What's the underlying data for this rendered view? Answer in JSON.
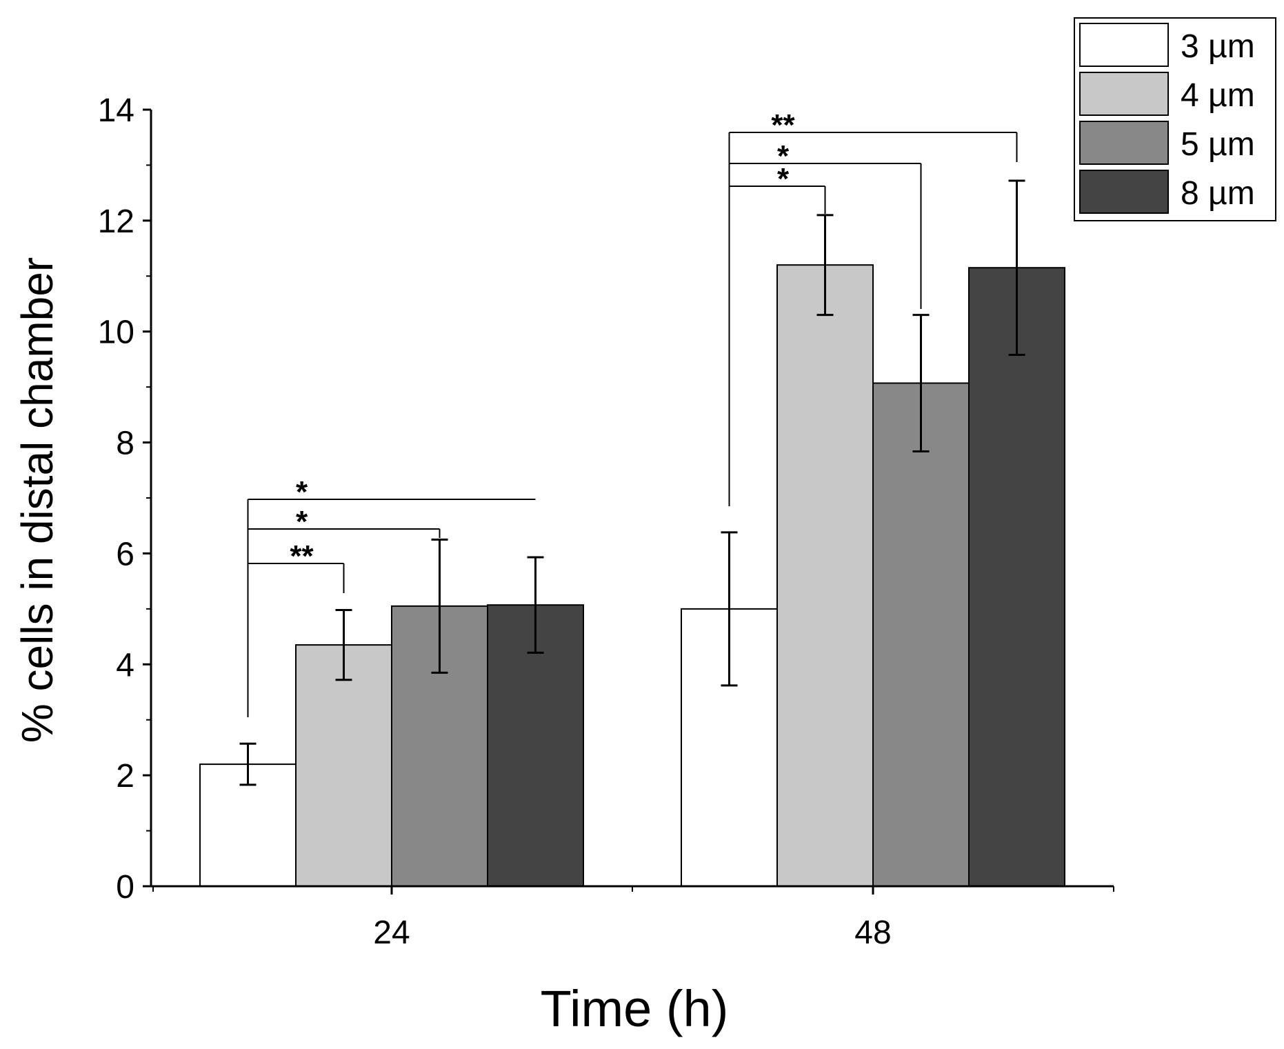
{
  "chart_data": {
    "type": "bar",
    "title": "",
    "xlabel": "Time (h)",
    "ylabel": "% cells in distal chamber",
    "categories": [
      "24",
      "48"
    ],
    "ylim": [
      0,
      14
    ],
    "yticks": [
      0,
      2,
      4,
      6,
      8,
      10,
      12,
      14
    ],
    "ytick_labels": [
      "0",
      "2",
      "4",
      "6",
      "8",
      "10",
      "12",
      "14"
    ],
    "grid": false,
    "legend": {
      "placement": "top-right"
    },
    "series": [
      {
        "name": "3 µm",
        "color": "#ffffff",
        "values": [
          2.2,
          5.0
        ],
        "errors": [
          0.37,
          1.38
        ]
      },
      {
        "name": "4 µm",
        "color": "#c8c8c8",
        "values": [
          4.35,
          11.2
        ],
        "errors": [
          0.63,
          0.9
        ]
      },
      {
        "name": "5 µm",
        "color": "#888888",
        "values": [
          5.05,
          9.07
        ],
        "errors": [
          1.2,
          1.23
        ]
      },
      {
        "name": "8 µm",
        "color": "#444444",
        "values": [
          5.07,
          11.15
        ],
        "errors": [
          0.86,
          1.57
        ]
      }
    ],
    "significance": [
      {
        "category": 0,
        "from": 0,
        "to": 1,
        "label": "**"
      },
      {
        "category": 0,
        "from": 0,
        "to": 2,
        "label": "*"
      },
      {
        "category": 0,
        "from": 0,
        "to": 3,
        "label": "*"
      },
      {
        "category": 1,
        "from": 0,
        "to": 1,
        "label": "*"
      },
      {
        "category": 1,
        "from": 0,
        "to": 2,
        "label": "*"
      },
      {
        "category": 1,
        "from": 0,
        "to": 3,
        "label": "**"
      }
    ]
  }
}
